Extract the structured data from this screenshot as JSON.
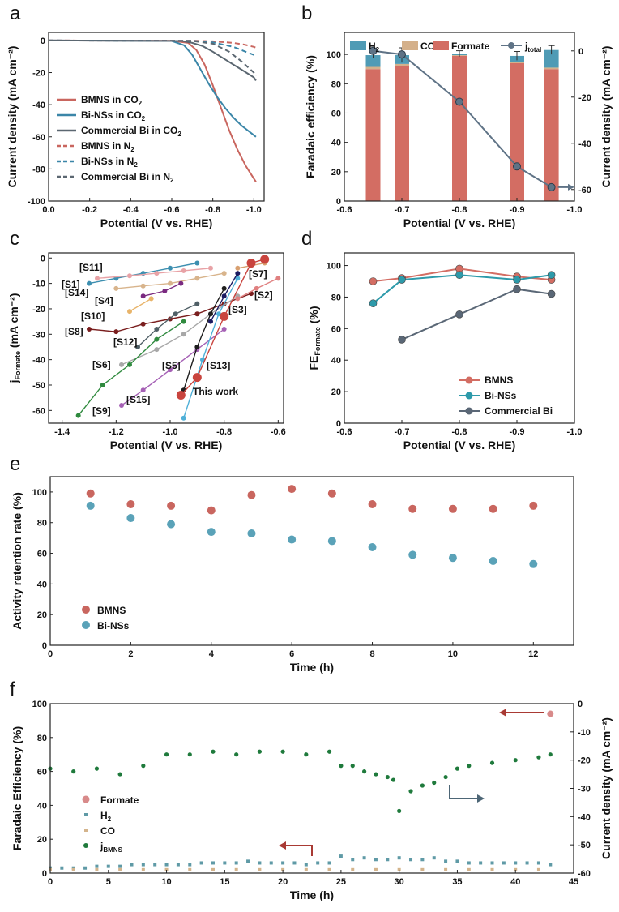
{
  "chart_data": [
    {
      "panel": "a",
      "type": "line",
      "xlabel": "Potential (V vs. RHE)",
      "ylabel": "Current density (mA cm⁻²)",
      "xlim": [
        0.0,
        -1.05
      ],
      "ylim": [
        -100,
        5
      ],
      "xticks": [
        "0.0",
        "-0.2",
        "-0.4",
        "-0.6",
        "-0.8",
        "-1.0"
      ],
      "yticks": [
        "-100",
        "-80",
        "-60",
        "-40",
        "-20",
        "0"
      ],
      "legend_position": "lower-left",
      "series": [
        {
          "name": "BMNS in CO₂",
          "color": "#c9665f",
          "dash": "solid",
          "x": [
            0,
            -0.6,
            -0.68,
            -0.72,
            -0.76,
            -0.8,
            -0.84,
            -0.88,
            -0.92,
            -0.96,
            -1.0,
            -1.01
          ],
          "y": [
            0,
            -0.2,
            -1.5,
            -6,
            -15,
            -28,
            -42,
            -56,
            -68,
            -78,
            -86,
            -88
          ]
        },
        {
          "name": "Bi-NSs in CO₂",
          "color": "#3b86a8",
          "dash": "solid",
          "x": [
            0,
            -0.6,
            -0.66,
            -0.7,
            -0.74,
            -0.78,
            -0.82,
            -0.86,
            -0.9,
            -0.94,
            -0.98,
            -1.01
          ],
          "y": [
            0,
            -0.3,
            -3,
            -9,
            -18,
            -27,
            -35,
            -42,
            -48,
            -53,
            -57,
            -60
          ]
        },
        {
          "name": "Commercial Bi in CO₂",
          "color": "#5b6771",
          "dash": "solid",
          "x": [
            0,
            -0.65,
            -0.7,
            -0.75,
            -0.8,
            -0.85,
            -0.9,
            -0.95,
            -1.0,
            -1.01
          ],
          "y": [
            0,
            -0.3,
            -1.5,
            -3.5,
            -7,
            -11,
            -15,
            -19,
            -23,
            -25
          ]
        },
        {
          "name": "BMNS in N₂",
          "color": "#c9665f",
          "dash": "dash",
          "x": [
            0,
            -0.7,
            -0.8,
            -0.9,
            -0.95,
            -1.0,
            -1.01
          ],
          "y": [
            0,
            -0.1,
            -0.5,
            -1.5,
            -2.5,
            -4,
            -4.5
          ]
        },
        {
          "name": "Bi-NSs in N₂",
          "color": "#3b86a8",
          "dash": "dash",
          "x": [
            0,
            -0.7,
            -0.8,
            -0.9,
            -0.95,
            -1.0,
            -1.01
          ],
          "y": [
            0,
            -0.2,
            -1.2,
            -4,
            -6.5,
            -9,
            -10
          ]
        },
        {
          "name": "Commercial Bi in N₂",
          "color": "#5b6771",
          "dash": "dash",
          "x": [
            0,
            -0.7,
            -0.8,
            -0.88,
            -0.94,
            -1.0,
            -1.01
          ],
          "y": [
            0,
            -0.3,
            -2,
            -7,
            -13,
            -20,
            -22
          ]
        }
      ]
    },
    {
      "panel": "b",
      "type": "bar",
      "xlabel": "Potential (V vs. RHE)",
      "ylabel": "Faradaic efficiency (%)",
      "y2label": "Current density (mA cm⁻²)",
      "xlim": [
        -0.6,
        -1.0
      ],
      "ylim": [
        0,
        115
      ],
      "y2lim": [
        -65,
        8
      ],
      "xticks": [
        "-0.6",
        "-0.7",
        "-0.8",
        "-0.9",
        "-1.0"
      ],
      "yticks": [
        "0",
        "20",
        "40",
        "60",
        "80",
        "100"
      ],
      "y2ticks": [
        "-60",
        "-40",
        "-20",
        "0"
      ],
      "legend_position": "top",
      "categories": [
        -0.65,
        -0.7,
        -0.8,
        -0.9,
        -0.96
      ],
      "series": [
        {
          "name": "H₂",
          "color": "#4f9bb5",
          "values": [
            8,
            6,
            1,
            4,
            12
          ]
        },
        {
          "name": "CO",
          "color": "#d4b08a",
          "values": [
            1.5,
            1.5,
            0.5,
            1,
            1
          ]
        },
        {
          "name": "Formate",
          "color": "#d36d63",
          "values": [
            90,
            92,
            99,
            94,
            90
          ]
        }
      ],
      "error_bars": [
        2,
        5,
        2,
        3,
        3
      ],
      "j_total": {
        "name": "j",
        "subscript": "total",
        "color": "#5f7386",
        "values": [
          0,
          -1.5,
          -22,
          -50,
          -59
        ]
      }
    },
    {
      "panel": "c",
      "type": "scatter",
      "xlabel": "Potential (V vs. RHE)",
      "ylabel": "j",
      "ylabel_subscript": "Formate",
      "ylabel_units": "(mA cm⁻²)",
      "xlim": [
        -1.45,
        -0.58
      ],
      "ylim": [
        -65,
        2
      ],
      "xticks": [
        "-1.4",
        "-1.2",
        "-1.0",
        "-0.8",
        "-0.6"
      ],
      "yticks": [
        "-60",
        "-50",
        "-40",
        "-30",
        "-20",
        "-10",
        "0"
      ],
      "series": [
        {
          "name": "[S1]",
          "color": "#3d8fb0",
          "x": [
            -1.3,
            -1.2,
            -1.1,
            -1.0,
            -0.9
          ],
          "y": [
            -10,
            -8,
            -6,
            -4,
            -2
          ]
        },
        {
          "name": "[S11]",
          "color": "#e8a2a6",
          "x": [
            -1.27,
            -1.15,
            -1.05,
            -0.95,
            -0.85
          ],
          "y": [
            -8,
            -7,
            -6,
            -5,
            -4
          ]
        },
        {
          "name": "[S14]",
          "color": "#d8b48c",
          "x": [
            -1.2,
            -1.1,
            -1.0,
            -0.9,
            -0.8
          ],
          "y": [
            -12,
            -11,
            -10,
            -8,
            -6
          ]
        },
        {
          "name": "[S4]",
          "color": "#7a2a80",
          "x": [
            -1.1,
            -1.02,
            -0.96
          ],
          "y": [
            -15,
            -13,
            -10
          ]
        },
        {
          "name": "[S10]",
          "color": "#e8b46a",
          "x": [
            -1.15,
            -1.07
          ],
          "y": [
            -21,
            -16
          ]
        },
        {
          "name": "[S8]",
          "color": "#7a1e1e",
          "x": [
            -1.3,
            -1.2,
            -1.1,
            -1.0,
            -0.9,
            -0.8,
            -0.7
          ],
          "y": [
            -28,
            -29,
            -26,
            -24,
            -22,
            -18,
            -14
          ]
        },
        {
          "name": "[S12]",
          "color": "#4f5f66",
          "x": [
            -1.12,
            -1.05,
            -0.98,
            -0.9
          ],
          "y": [
            -35,
            -28,
            -22,
            -18
          ]
        },
        {
          "name": "[S6]",
          "color": "#a8a8a8",
          "x": [
            -1.18,
            -1.05,
            -0.95,
            -0.85,
            -0.75
          ],
          "y": [
            -42,
            -36,
            -30,
            -22,
            -15
          ]
        },
        {
          "name": "[S9]",
          "color": "#2f8a3e",
          "x": [
            -1.34,
            -1.25,
            -1.15,
            -1.05,
            -0.95
          ],
          "y": [
            -62,
            -50,
            -42,
            -32,
            -25
          ]
        },
        {
          "name": "[S15]",
          "color": "#a560b5",
          "x": [
            -1.18,
            -1.1,
            -1.0,
            -0.9,
            -0.8
          ],
          "y": [
            -58,
            -52,
            -44,
            -36,
            -28
          ]
        },
        {
          "name": "[S5]",
          "color": "#1e1e1e",
          "x": [
            -0.95,
            -0.9,
            -0.85,
            -0.8
          ],
          "y": [
            -52,
            -35,
            -22,
            -12
          ]
        },
        {
          "name": "[S13]",
          "color": "#4fb0d8",
          "x": [
            -0.95,
            -0.88,
            -0.82,
            -0.75
          ],
          "y": [
            -63,
            -40,
            -22,
            -8
          ]
        },
        {
          "name": "[S3]",
          "color": "#1a1a60",
          "x": [
            -0.85,
            -0.8,
            -0.75
          ],
          "y": [
            -25,
            -15,
            -6
          ]
        },
        {
          "name": "[S7]",
          "color": "#d8a070",
          "x": [
            -0.75,
            -0.7,
            -0.65
          ],
          "y": [
            -4,
            -3,
            -2
          ]
        },
        {
          "name": "[S2]",
          "color": "#e08080",
          "x": [
            -0.75,
            -0.68,
            -0.6
          ],
          "y": [
            -16,
            -12,
            -8
          ]
        },
        {
          "name": "This work",
          "color": "#c9443e",
          "x": [
            -0.96,
            -0.9,
            -0.8,
            -0.7,
            -0.65
          ],
          "y": [
            -54,
            -47,
            -23,
            -2,
            -0.5
          ]
        }
      ],
      "annotations": [
        "This work"
      ]
    },
    {
      "panel": "d",
      "type": "line",
      "xlabel": "Potential (V vs. RHE)",
      "ylabel": "FE",
      "ylabel_subscript": "Formate",
      "ylabel_units": "(%)",
      "xlim": [
        -0.6,
        -1.0
      ],
      "ylim": [
        0,
        108
      ],
      "xticks": [
        "-0.6",
        "-0.7",
        "-0.8",
        "-0.9",
        "-1.0"
      ],
      "yticks": [
        "0",
        "20",
        "40",
        "60",
        "80",
        "100"
      ],
      "legend_position": "lower-right",
      "series": [
        {
          "name": "BMNS",
          "color": "#d36d63",
          "x": [
            -0.65,
            -0.7,
            -0.8,
            -0.9,
            -0.96
          ],
          "y": [
            90,
            92,
            98,
            93,
            91
          ]
        },
        {
          "name": "Bi-NSs",
          "color": "#2d9aaa",
          "x": [
            -0.65,
            -0.7,
            -0.8,
            -0.9,
            -0.96
          ],
          "y": [
            76,
            91,
            94,
            91,
            94
          ]
        },
        {
          "name": "Commercial Bi",
          "color": "#5a6776",
          "x": [
            -0.7,
            -0.8,
            -0.9,
            -0.96
          ],
          "y": [
            53,
            69,
            85,
            82
          ]
        }
      ]
    },
    {
      "panel": "e",
      "type": "scatter",
      "xlabel": "Time (h)",
      "ylabel": "Activity retention rate (%)",
      "xlim": [
        0,
        13
      ],
      "ylim": [
        0,
        110
      ],
      "xticks": [
        "0",
        "2",
        "4",
        "6",
        "8",
        "10",
        "12"
      ],
      "yticks": [
        "0",
        "20",
        "40",
        "60",
        "80",
        "100"
      ],
      "legend_position": "lower-left",
      "series": [
        {
          "name": "BMNS",
          "color": "#c9665f",
          "x": [
            1,
            2,
            3,
            4,
            5,
            6,
            7,
            8,
            9,
            10,
            11,
            12
          ],
          "y": [
            99,
            92,
            91,
            88,
            98,
            102,
            99,
            92,
            89,
            89,
            89,
            91
          ]
        },
        {
          "name": "Bi-NSs",
          "color": "#5aa2b8",
          "x": [
            1,
            2,
            3,
            4,
            5,
            6,
            7,
            8,
            9,
            10,
            11,
            12
          ],
          "y": [
            91,
            83,
            79,
            74,
            73,
            69,
            68,
            64,
            59,
            57,
            55,
            53
          ]
        }
      ]
    },
    {
      "panel": "f",
      "type": "scatter",
      "xlabel": "Time (h)",
      "ylabel": "Faradaic Efficiency (%)",
      "y2label": "Current density (mA cm⁻²)",
      "xlim": [
        0,
        45
      ],
      "ylim": [
        0,
        100
      ],
      "y2lim": [
        -60,
        0
      ],
      "xticks": [
        "0",
        "5",
        "10",
        "15",
        "20",
        "25",
        "30",
        "35",
        "40",
        "45"
      ],
      "yticks": [
        "0",
        "20",
        "40",
        "60",
        "80",
        "100"
      ],
      "y2ticks": [
        "-60",
        "-50",
        "-40",
        "-30",
        "-20",
        "-10",
        "0"
      ],
      "legend_position": "lower-left",
      "series": [
        {
          "name": "Formate",
          "color": "#d88a8a",
          "x": [
            43
          ],
          "y": [
            94
          ]
        },
        {
          "name": "H₂",
          "color": "#5f9aa6",
          "x": [
            0,
            1,
            2,
            3,
            4,
            5,
            6,
            7,
            8,
            9,
            10,
            11,
            12,
            13,
            14,
            15,
            16,
            17,
            18,
            19,
            20,
            21,
            22,
            23,
            24,
            25,
            26,
            27,
            28,
            29,
            30,
            31,
            32,
            33,
            34,
            35,
            36,
            37,
            38,
            39,
            40,
            41,
            42,
            43
          ],
          "y": [
            3,
            3,
            3,
            3,
            4,
            4,
            4,
            5,
            5,
            5,
            5,
            5,
            5,
            6,
            6,
            6,
            6,
            7,
            6,
            6,
            6,
            6,
            5,
            6,
            6,
            10,
            8,
            9,
            8,
            8,
            9,
            8,
            8,
            9,
            7,
            7,
            6,
            6,
            6,
            6,
            6,
            6,
            6,
            5
          ]
        },
        {
          "name": "CO",
          "color": "#d4b48c",
          "x": [
            0,
            2,
            4,
            6,
            8,
            10,
            12,
            14,
            16,
            18,
            20,
            22,
            24,
            26,
            28,
            30,
            32,
            34,
            36,
            38,
            40,
            42
          ],
          "y": [
            2,
            2,
            2,
            2,
            2,
            2,
            2,
            2,
            2,
            2,
            2,
            2,
            2,
            2,
            2,
            2,
            2,
            2,
            2,
            2,
            2,
            2
          ]
        },
        {
          "name": "j",
          "subscript": "BMNS",
          "color": "#1f7a3c",
          "axis": "y2",
          "x": [
            0,
            2,
            4,
            6,
            8,
            10,
            12,
            14,
            16,
            18,
            20,
            22,
            24,
            25,
            26,
            27,
            28,
            29,
            29.5,
            30,
            31,
            32,
            33,
            34,
            35,
            36,
            38,
            40,
            42,
            43
          ],
          "y": [
            -23,
            -24,
            -23,
            -25,
            -22,
            -18,
            -18,
            -17,
            -18,
            -17,
            -17,
            -18,
            -17,
            -22,
            -22,
            -24,
            -25,
            -26,
            -27,
            -38,
            -31,
            -29,
            -28,
            -26,
            -23,
            -22,
            -21,
            -20,
            -19,
            -18
          ]
        }
      ]
    }
  ],
  "labels": {
    "panels": [
      "a",
      "b",
      "c",
      "d",
      "e",
      "f"
    ],
    "this_work": "This work"
  }
}
